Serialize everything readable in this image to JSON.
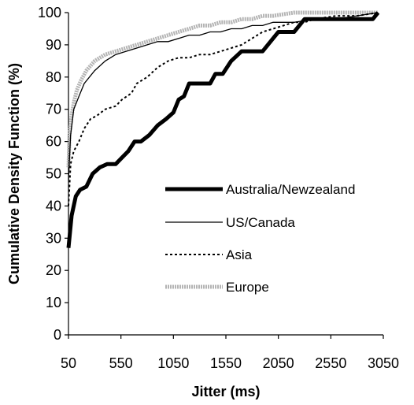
{
  "chart_data": {
    "type": "line",
    "title": "",
    "xlabel": "Jitter (ms)",
    "ylabel": "Cumulative Density Function (%)",
    "xlim": [
      50,
      3050
    ],
    "ylim": [
      0,
      100
    ],
    "xticks": [
      50,
      550,
      1050,
      1550,
      2050,
      2550,
      3050
    ],
    "xtick_labels": [
      "50",
      "550",
      "1050",
      "1550",
      "2050",
      "2550",
      "3050"
    ],
    "yticks": [
      0,
      10,
      20,
      30,
      40,
      50,
      60,
      70,
      80,
      90,
      100
    ],
    "ytick_labels": [
      "0",
      "10",
      "20",
      "30",
      "40",
      "50",
      "60",
      "70",
      "80",
      "90",
      "100"
    ],
    "grid": false,
    "legend_position": "center-right",
    "series": [
      {
        "name": "Australia/Newzealand",
        "color": "#000000",
        "style": "solid-thick",
        "x": [
          50,
          80,
          120,
          160,
          220,
          280,
          350,
          420,
          500,
          560,
          620,
          680,
          740,
          820,
          900,
          980,
          1050,
          1100,
          1150,
          1200,
          1300,
          1400,
          1450,
          1520,
          1600,
          1700,
          1800,
          1900,
          2000,
          2050,
          2100,
          2200,
          2300,
          2350,
          2450,
          2550,
          2650,
          2750,
          2850,
          2950,
          3000
        ],
        "y": [
          27,
          37,
          43,
          45,
          46,
          50,
          52,
          53,
          53,
          55,
          57,
          60,
          60,
          62,
          65,
          67,
          69,
          73,
          74,
          78,
          78,
          78,
          81,
          81,
          85,
          88,
          88,
          88,
          92,
          94,
          94,
          94,
          98,
          98,
          98,
          98,
          98,
          98,
          98,
          98,
          100
        ]
      },
      {
        "name": "US/Canada",
        "color": "#000000",
        "style": "solid-thin",
        "x": [
          50,
          70,
          100,
          150,
          200,
          300,
          400,
          500,
          600,
          700,
          800,
          900,
          1000,
          1100,
          1200,
          1300,
          1400,
          1500,
          1600,
          1700,
          1800,
          1900,
          2000,
          2200,
          2400,
          2600,
          2800,
          3000
        ],
        "y": [
          48,
          62,
          70,
          74,
          78,
          82,
          85,
          87,
          88,
          89,
          90,
          91,
          91,
          92,
          93,
          93,
          94,
          94,
          95,
          95,
          96,
          96,
          97,
          97,
          98,
          98,
          99,
          100
        ]
      },
      {
        "name": "Asia",
        "color": "#000000",
        "style": "dashed",
        "x": [
          50,
          70,
          100,
          150,
          200,
          260,
          320,
          400,
          500,
          560,
          650,
          700,
          800,
          900,
          1000,
          1100,
          1200,
          1300,
          1400,
          1500,
          1600,
          1700,
          1800,
          1900,
          2000,
          2100,
          2200,
          2300,
          2400,
          2600,
          2800,
          3000
        ],
        "y": [
          40,
          53,
          57,
          60,
          64,
          67,
          68,
          70,
          71,
          73,
          75,
          78,
          80,
          83,
          85,
          86,
          86,
          87,
          87,
          88,
          89,
          90,
          92,
          94,
          95,
          96,
          97,
          97,
          98,
          99,
          99,
          100
        ]
      },
      {
        "name": "Europe",
        "color": "#b4b4b4",
        "style": "gray-band",
        "x": [
          50,
          60,
          80,
          100,
          130,
          170,
          220,
          300,
          400,
          500,
          600,
          700,
          800,
          900,
          1000,
          1100,
          1200,
          1300,
          1400,
          1500,
          1600,
          1700,
          1800,
          1900,
          2000,
          2200,
          2400,
          2600,
          3000
        ],
        "y": [
          52,
          62,
          68,
          72,
          76,
          79,
          82,
          85,
          87,
          88,
          89,
          90,
          91,
          92,
          93,
          94,
          95,
          96,
          96,
          97,
          97,
          98,
          98,
          99,
          99,
          100,
          100,
          100,
          100
        ]
      }
    ]
  }
}
